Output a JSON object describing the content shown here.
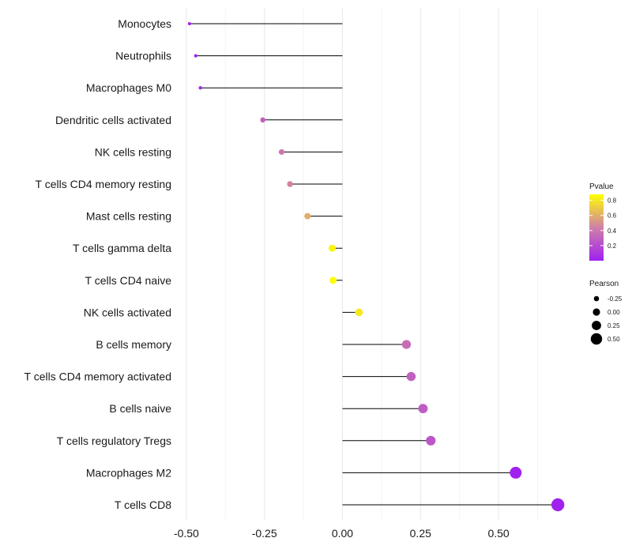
{
  "chart_data": {
    "type": "lollipop",
    "title": "",
    "xlabel": "",
    "ylabel": "",
    "xlim": [
      -0.52,
      0.72
    ],
    "x_ticks": [
      -0.5,
      -0.25,
      0.0,
      0.25,
      0.5
    ],
    "x_tick_labels": [
      "-0.50",
      "-0.25",
      "0.00",
      "0.25",
      "0.50"
    ],
    "baseline": 0,
    "categories": [
      "Monocytes",
      "Neutrophils",
      "Macrophages M0",
      "Dendritic cells activated",
      "NK cells resting",
      "T cells CD4 memory resting",
      "Mast cells resting",
      "T cells gamma delta",
      "T cells CD4 naive",
      "NK cells activated",
      "B cells memory",
      "T cells CD4 memory activated",
      "B cells naive",
      "T cells regulatory  Tregs ",
      "Macrophages M2",
      "T cells CD8"
    ],
    "pearson": [
      -0.49,
      -0.47,
      -0.455,
      -0.255,
      -0.195,
      -0.168,
      -0.112,
      -0.033,
      -0.03,
      0.053,
      0.205,
      0.22,
      0.258,
      0.283,
      0.555,
      0.69
    ],
    "pvalue": [
      0.02,
      0.03,
      0.04,
      0.3,
      0.4,
      0.45,
      0.6,
      0.85,
      0.87,
      0.8,
      0.35,
      0.3,
      0.28,
      0.25,
      0.01,
      0.005
    ],
    "color_legend": {
      "title": "Pvalue",
      "ticks": [
        0.2,
        0.4,
        0.6,
        0.8
      ],
      "tick_labels": [
        "0.2",
        "0.4",
        "0.6",
        "0.8"
      ],
      "range": [
        0.0,
        0.88
      ],
      "low_color": "#a020f0",
      "mid_color": "#d080a8",
      "high_color": "#ffff00"
    },
    "size_legend": {
      "title": "Pearson",
      "values": [
        -0.25,
        0.0,
        0.25,
        0.5
      ],
      "labels": [
        "-0.25",
        "0.00",
        "0.25",
        "0.50"
      ]
    }
  }
}
